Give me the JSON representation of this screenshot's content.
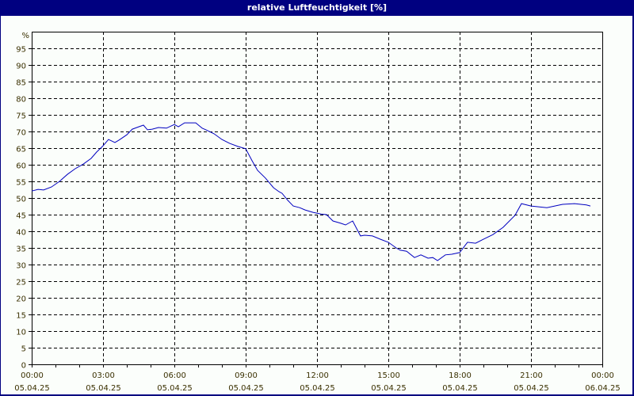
{
  "window": {
    "title": "relative Luftfeuchtigkeit [%]"
  },
  "colors": {
    "frame": "#000080",
    "background": "#fbfefb",
    "line": "#0000c0",
    "grid": "#000000",
    "labels": "#3a3000"
  },
  "chart_data": {
    "type": "line",
    "title": "relative Luftfeuchtigkeit [%]",
    "xlabel": "",
    "ylabel": "%",
    "ylim": [
      0,
      100
    ],
    "y_ticks": [
      0,
      5,
      10,
      15,
      20,
      25,
      30,
      35,
      40,
      45,
      50,
      55,
      60,
      65,
      70,
      75,
      80,
      85,
      90,
      95
    ],
    "x_ticks": [
      {
        "time": "00:00",
        "date": "05.04.25"
      },
      {
        "time": "03:00",
        "date": "05.04.25"
      },
      {
        "time": "06:00",
        "date": "05.04.25"
      },
      {
        "time": "09:00",
        "date": "05.04.25"
      },
      {
        "time": "12:00",
        "date": "05.04.25"
      },
      {
        "time": "15:00",
        "date": "05.04.25"
      },
      {
        "time": "18:00",
        "date": "05.04.25"
      },
      {
        "time": "21:00",
        "date": "05.04.25"
      },
      {
        "time": "00:00",
        "date": "06.04.25"
      }
    ],
    "grid": true,
    "legend": "none",
    "series": [
      {
        "name": "relative Luftfeuchtigkeit",
        "x_hours": [
          0,
          0.27,
          0.5,
          0.83,
          1.17,
          1.5,
          1.83,
          2.17,
          2.5,
          2.73,
          3.0,
          3.23,
          3.5,
          3.67,
          4.0,
          4.23,
          4.5,
          4.7,
          4.87,
          5.07,
          5.33,
          5.67,
          6.0,
          6.17,
          6.43,
          6.9,
          7.17,
          7.33,
          7.67,
          8.0,
          8.33,
          8.67,
          9.0,
          9.27,
          9.5,
          9.83,
          10.17,
          10.4,
          10.53,
          10.77,
          11.0,
          11.27,
          11.5,
          11.83,
          12.17,
          12.4,
          12.67,
          13.0,
          13.2,
          13.5,
          13.83,
          14.0,
          14.33,
          14.67,
          15.0,
          15.33,
          15.5,
          15.77,
          16.1,
          16.37,
          16.67,
          16.87,
          17.07,
          17.4,
          17.67,
          18.0,
          18.33,
          18.67,
          19.0,
          19.4,
          19.83,
          20.33,
          20.6,
          21.0,
          21.67,
          22.33,
          22.83,
          23.33,
          23.5
        ],
        "values": [
          52.1,
          52.6,
          52.4,
          53.3,
          55.0,
          57.1,
          58.8,
          60.2,
          61.9,
          63.8,
          65.7,
          67.6,
          66.7,
          67.4,
          69.0,
          70.7,
          71.4,
          71.9,
          70.5,
          70.7,
          71.2,
          71.0,
          72.1,
          71.4,
          72.6,
          72.6,
          71.0,
          70.5,
          69.3,
          67.6,
          66.4,
          65.5,
          64.8,
          61.2,
          58.3,
          56.0,
          53.1,
          51.9,
          51.4,
          49.3,
          47.6,
          47.1,
          46.4,
          45.7,
          45.2,
          45.0,
          43.1,
          42.4,
          41.9,
          43.1,
          38.6,
          38.8,
          38.6,
          37.6,
          36.7,
          35.0,
          34.3,
          34.0,
          32.1,
          32.9,
          31.9,
          32.1,
          31.2,
          32.9,
          33.1,
          33.6,
          36.7,
          36.4,
          37.6,
          39.0,
          41.2,
          44.8,
          48.3,
          47.6,
          47.1,
          48.1,
          48.3,
          47.9,
          47.6
        ]
      }
    ]
  }
}
